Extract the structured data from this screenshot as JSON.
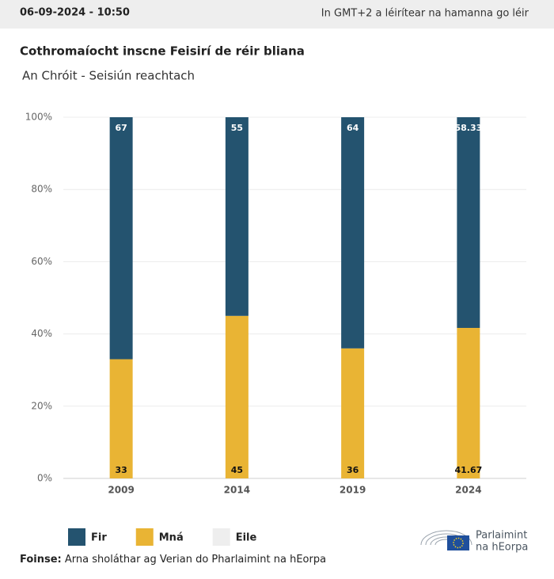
{
  "header": {
    "date": "06-09-2024 - 10:50",
    "timezone_note": "In GMT+2 a léirítear na hamanna go léir"
  },
  "chart_data": {
    "type": "stacked-bar",
    "title": "Cothromaíocht inscne Feisirí de réir bliana",
    "subtitle": "An Chróit - Seisiún reachtach",
    "categories": [
      "2009",
      "2014",
      "2019",
      "2024"
    ],
    "series": [
      {
        "name": "Fir",
        "color": "#24536f",
        "label_color": "#ffffff",
        "values": [
          67,
          55,
          64,
          58.33
        ]
      },
      {
        "name": "Mná",
        "color": "#e9b434",
        "label_color": "#111111",
        "values": [
          33,
          45,
          36,
          41.67
        ]
      },
      {
        "name": "Eile",
        "color": "#eeeeee",
        "label_color": "#111111",
        "values": [
          0,
          0,
          0,
          0
        ]
      }
    ],
    "ylim": [
      0,
      100
    ],
    "yticks": [
      {
        "value": 0,
        "label": "0%"
      },
      {
        "value": 20,
        "label": "20%"
      },
      {
        "value": 40,
        "label": "40%"
      },
      {
        "value": 60,
        "label": "60%"
      },
      {
        "value": 80,
        "label": "80%"
      },
      {
        "value": 100,
        "label": "100%"
      }
    ],
    "grid": true
  },
  "source": {
    "label": "Foinse:",
    "text": "Arna sholáthar ag Verian do Pharlaimint na hEorpa"
  },
  "logo": {
    "line1": "Parlaimint",
    "line2": "na hEorpa"
  }
}
